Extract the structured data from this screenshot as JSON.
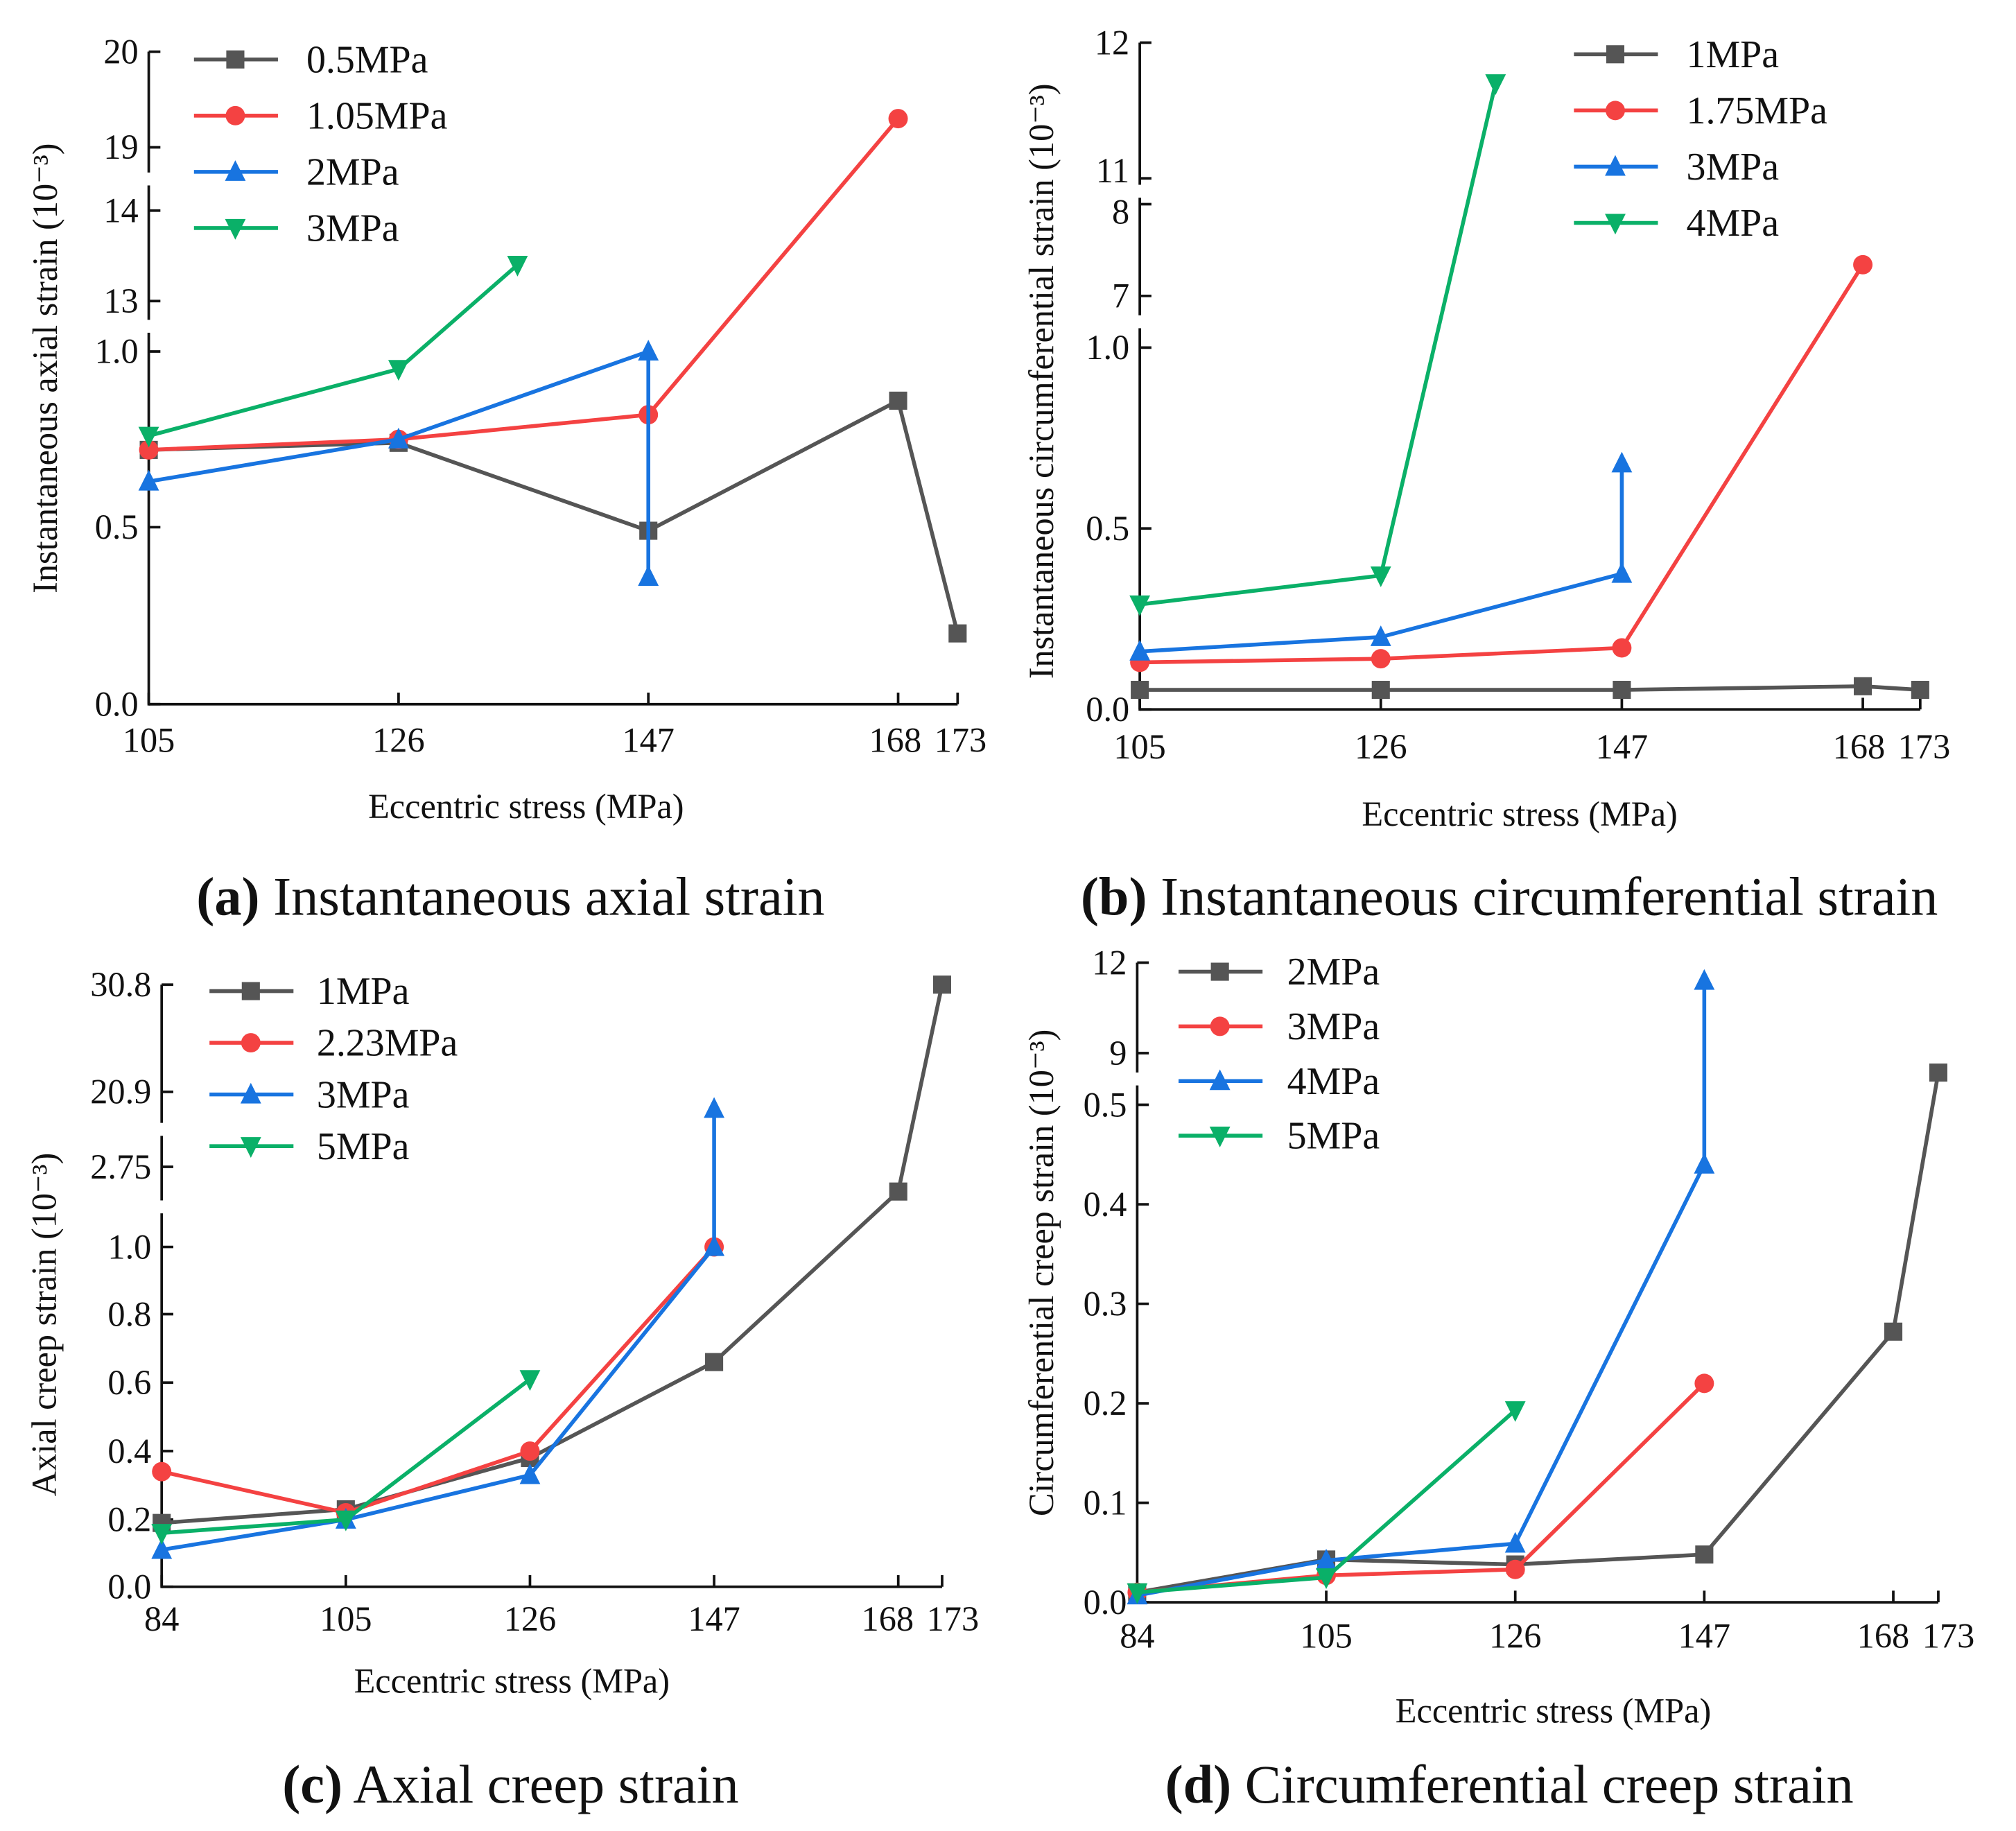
{
  "colors": {
    "s0": "#555555",
    "s1": "#f44242",
    "s2": "#1874e0",
    "s3": "#0ab068",
    "axis": "#111111"
  },
  "chart_data": [
    {
      "type": "line",
      "panel": "a",
      "caption_letter": "(a)",
      "caption_text": " Instantaneous axial strain",
      "xlabel": "Eccentric stress (MPa)",
      "ylabel": "Instantaneous axial strain (10⁻³)",
      "xticks": [
        "105",
        "126",
        "147",
        "168",
        "173"
      ],
      "xtick_values": [
        105,
        126,
        147,
        168,
        173
      ],
      "yticks": [
        "0.0",
        "0.5",
        "1.0",
        "13",
        "14",
        "19",
        "20"
      ],
      "ytick_values": [
        0,
        0.5,
        1.0,
        13,
        14,
        19,
        20
      ],
      "y_axis_breaks": [
        [
          1.0,
          13
        ],
        [
          14,
          19
        ]
      ],
      "legend_position": "top-left",
      "series": [
        {
          "name": "0.5MPa",
          "marker": "square",
          "x": [
            105,
            126,
            147,
            168,
            173
          ],
          "y": [
            0.72,
            0.74,
            0.49,
            0.86,
            0.2
          ]
        },
        {
          "name": "1.05MPa",
          "marker": "circle",
          "x": [
            105,
            126,
            147,
            168
          ],
          "y": [
            0.72,
            0.75,
            0.82,
            19.3
          ]
        },
        {
          "name": "2MPa",
          "marker": "triangle-up",
          "x": [
            105,
            126,
            147,
            147
          ],
          "y": [
            0.63,
            0.75,
            1.0,
            0.36
          ]
        },
        {
          "name": "3MPa",
          "marker": "triangle-down",
          "x": [
            105,
            126,
            136
          ],
          "y": [
            0.76,
            0.95,
            13.4
          ]
        }
      ]
    },
    {
      "type": "line",
      "panel": "b",
      "caption_letter": "(b)",
      "caption_text": " Instantaneous circumferential strain",
      "xlabel": "Eccentric stress (MPa)",
      "ylabel": "Instantaneous circumferential strain (10⁻³)",
      "xticks": [
        "105",
        "126",
        "147",
        "168",
        "173"
      ],
      "xtick_values": [
        105,
        126,
        147,
        168,
        173
      ],
      "yticks": [
        "0.0",
        "0.5",
        "1.0",
        "7",
        "8",
        "11",
        "12"
      ],
      "ytick_values": [
        0,
        0.5,
        1.0,
        7,
        8,
        11,
        12
      ],
      "y_axis_breaks": [
        [
          1.0,
          7
        ],
        [
          8,
          11
        ]
      ],
      "legend_position": "top-right",
      "series": [
        {
          "name": "1MPa",
          "marker": "square",
          "x": [
            105,
            126,
            147,
            168,
            173
          ],
          "y": [
            0.054,
            0.054,
            0.054,
            0.064,
            0.054
          ]
        },
        {
          "name": "1.75MPa",
          "marker": "circle",
          "x": [
            105,
            126,
            147,
            168
          ],
          "y": [
            0.13,
            0.14,
            0.17,
            7.34
          ]
        },
        {
          "name": "3MPa",
          "marker": "triangle-up",
          "x": [
            105,
            126,
            147,
            147
          ],
          "y": [
            0.16,
            0.2,
            0.375,
            0.68
          ]
        },
        {
          "name": "4MPa",
          "marker": "triangle-down",
          "x": [
            105,
            126,
            136
          ],
          "y": [
            0.29,
            0.37,
            11.7
          ]
        }
      ]
    },
    {
      "type": "line",
      "panel": "c",
      "caption_letter": "(c)",
      "caption_text": " Axial creep strain",
      "xlabel": "Eccentric stress (MPa)",
      "ylabel": "Axial creep strain (10⁻³)",
      "xticks": [
        "84",
        "105",
        "126",
        "147",
        "168",
        "173"
      ],
      "xtick_values": [
        84,
        105,
        126,
        147,
        168,
        173
      ],
      "yticks": [
        "0.0",
        "0.2",
        "0.4",
        "0.6",
        "0.8",
        "1.0",
        "2.75",
        "20.9",
        "30.8"
      ],
      "ytick_values": [
        0,
        0.2,
        0.4,
        0.6,
        0.8,
        1.0,
        2.75,
        20.9,
        30.8
      ],
      "y_axis_breaks": [
        [
          1.0,
          2.75
        ],
        [
          2.75,
          20.9
        ]
      ],
      "legend_position": "top-left",
      "series": [
        {
          "name": "1MPa",
          "marker": "square",
          "x": [
            84,
            105,
            126,
            147,
            168,
            173
          ],
          "y": [
            0.19,
            0.23,
            0.38,
            0.66,
            2.21,
            30.8
          ]
        },
        {
          "name": "2.23MPa",
          "marker": "circle",
          "x": [
            84,
            105,
            126,
            147
          ],
          "y": [
            0.34,
            0.22,
            0.4,
            1.0
          ]
        },
        {
          "name": "3MPa",
          "marker": "triangle-up",
          "x": [
            84,
            105,
            126,
            147,
            147
          ],
          "y": [
            0.11,
            0.2,
            0.33,
            1.0,
            16.8
          ]
        },
        {
          "name": "5MPa",
          "marker": "triangle-down",
          "x": [
            84,
            105,
            126
          ],
          "y": [
            0.16,
            0.2,
            0.61
          ]
        }
      ]
    },
    {
      "type": "line",
      "panel": "d",
      "caption_letter": "(d)",
      "caption_text": " Circumferential creep strain",
      "xlabel": "Eccentric stress (MPa)",
      "ylabel": "Circumferential creep strain (10⁻³)",
      "xticks": [
        "84",
        "105",
        "126",
        "147",
        "168",
        "173"
      ],
      "xtick_values": [
        84,
        105,
        126,
        147,
        168,
        173
      ],
      "yticks": [
        "0.0",
        "0.1",
        "0.2",
        "0.3",
        "0.4",
        "0.5",
        "9",
        "12"
      ],
      "ytick_values": [
        0,
        0.1,
        0.2,
        0.3,
        0.4,
        0.5,
        9,
        12
      ],
      "y_axis_breaks": [
        [
          0.5,
          9
        ]
      ],
      "legend_position": "top-left",
      "series": [
        {
          "name": "2MPa",
          "marker": "square",
          "x": [
            84,
            105,
            126,
            147,
            168,
            173
          ],
          "y": [
            0.01,
            0.043,
            0.038,
            0.048,
            0.272,
            5.8
          ]
        },
        {
          "name": "3MPa",
          "marker": "circle",
          "x": [
            84,
            105,
            126,
            147
          ],
          "y": [
            0.01,
            0.027,
            0.033,
            0.22
          ]
        },
        {
          "name": "4MPa",
          "marker": "triangle-up",
          "x": [
            84,
            105,
            126,
            147,
            147
          ],
          "y": [
            0.007,
            0.042,
            0.059,
            0.44,
            11.4
          ]
        },
        {
          "name": "5MPa",
          "marker": "triangle-down",
          "x": [
            84,
            105,
            126
          ],
          "y": [
            0.01,
            0.025,
            0.193
          ]
        }
      ]
    }
  ]
}
